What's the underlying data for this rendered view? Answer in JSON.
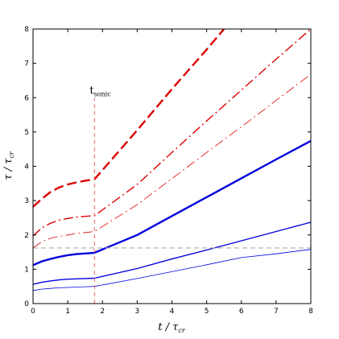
{
  "chart_data": {
    "type": "line",
    "title": "",
    "xlabel": {
      "main": "t / τ",
      "sub": "cr"
    },
    "ylabel": {
      "main": "τ / τ",
      "sub": "cr"
    },
    "xlim": [
      0,
      8
    ],
    "ylim": [
      0,
      8
    ],
    "xticks": [
      0,
      1,
      2,
      3,
      4,
      5,
      6,
      7,
      8
    ],
    "yticks": [
      0,
      1,
      2,
      3,
      4,
      5,
      6,
      7,
      8
    ],
    "grid": false,
    "annotation": {
      "main": "t",
      "sub": "sonic",
      "x": 1.77
    },
    "reference_line": {
      "y": 1.62,
      "style": "dashed",
      "color": "#aaaaaa"
    },
    "series": [
      {
        "color": "#dd0000",
        "style": "long-dash",
        "weight": "thick",
        "points": [
          [
            0,
            2.82
          ],
          [
            0.25,
            3.05
          ],
          [
            0.5,
            3.25
          ],
          [
            0.75,
            3.38
          ],
          [
            1.0,
            3.47
          ],
          [
            1.25,
            3.53
          ],
          [
            1.5,
            3.58
          ],
          [
            1.77,
            3.62
          ],
          [
            3,
            5.05
          ],
          [
            4,
            6.25
          ],
          [
            5,
            7.4
          ],
          [
            5.5,
            8.0
          ]
        ]
      },
      {
        "color": "#dd0000",
        "style": "dash-dot",
        "weight": "medium",
        "points": [
          [
            0,
            1.97
          ],
          [
            0.25,
            2.2
          ],
          [
            0.5,
            2.34
          ],
          [
            0.75,
            2.43
          ],
          [
            1.0,
            2.48
          ],
          [
            1.25,
            2.52
          ],
          [
            1.5,
            2.54
          ],
          [
            1.77,
            2.56
          ],
          [
            3,
            3.47
          ],
          [
            4,
            4.4
          ],
          [
            5,
            5.32
          ],
          [
            6,
            6.22
          ],
          [
            7,
            7.12
          ],
          [
            8,
            8.0
          ]
        ]
      },
      {
        "color": "#dd0000",
        "style": "dash-dot",
        "weight": "thin",
        "points": [
          [
            0,
            1.62
          ],
          [
            0.25,
            1.8
          ],
          [
            0.5,
            1.9
          ],
          [
            0.75,
            1.96
          ],
          [
            1.0,
            2.0
          ],
          [
            1.25,
            2.04
          ],
          [
            1.5,
            2.07
          ],
          [
            1.77,
            2.1
          ],
          [
            3,
            2.88
          ],
          [
            4,
            3.64
          ],
          [
            5,
            4.4
          ],
          [
            6,
            5.15
          ],
          [
            7,
            5.92
          ],
          [
            8,
            6.68
          ]
        ]
      },
      {
        "color": "#0000dd",
        "style": "solid",
        "weight": "thick",
        "points": [
          [
            0,
            1.12
          ],
          [
            0.25,
            1.23
          ],
          [
            0.5,
            1.3
          ],
          [
            0.75,
            1.36
          ],
          [
            1.0,
            1.41
          ],
          [
            1.25,
            1.44
          ],
          [
            1.5,
            1.46
          ],
          [
            1.77,
            1.48
          ],
          [
            3,
            2.0
          ],
          [
            4,
            2.55
          ],
          [
            5,
            3.1
          ],
          [
            6,
            3.65
          ],
          [
            7,
            4.2
          ],
          [
            8,
            4.74
          ]
        ]
      },
      {
        "color": "#0000dd",
        "style": "solid",
        "weight": "medium",
        "points": [
          [
            0,
            0.56
          ],
          [
            0.25,
            0.62
          ],
          [
            0.5,
            0.66
          ],
          [
            0.75,
            0.69
          ],
          [
            1.0,
            0.71
          ],
          [
            1.25,
            0.72
          ],
          [
            1.5,
            0.73
          ],
          [
            1.77,
            0.74
          ],
          [
            3,
            1.02
          ],
          [
            4,
            1.3
          ],
          [
            5,
            1.56
          ],
          [
            6,
            1.83
          ],
          [
            7,
            2.1
          ],
          [
            8,
            2.37
          ]
        ]
      },
      {
        "color": "#0000dd",
        "style": "solid",
        "weight": "thin",
        "points": [
          [
            0,
            0.38
          ],
          [
            0.25,
            0.42
          ],
          [
            0.5,
            0.44
          ],
          [
            0.75,
            0.46
          ],
          [
            1.0,
            0.47
          ],
          [
            1.25,
            0.48
          ],
          [
            1.5,
            0.49
          ],
          [
            1.77,
            0.5
          ],
          [
            3,
            0.73
          ],
          [
            4,
            0.93
          ],
          [
            5,
            1.13
          ],
          [
            6,
            1.34
          ],
          [
            7,
            1.45
          ],
          [
            8,
            1.58
          ]
        ]
      }
    ]
  }
}
